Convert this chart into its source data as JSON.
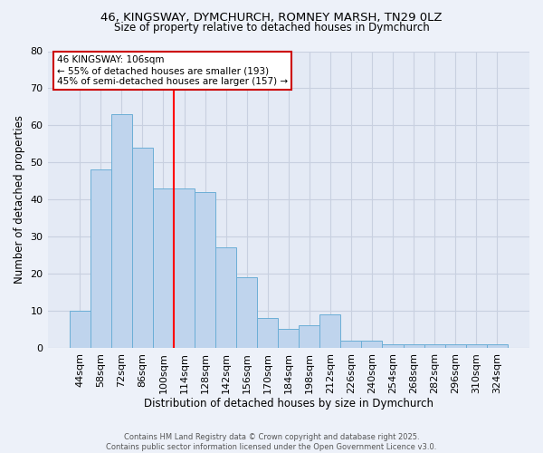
{
  "title_line1": "46, KINGSWAY, DYMCHURCH, ROMNEY MARSH, TN29 0LZ",
  "title_line2": "Size of property relative to detached houses in Dymchurch",
  "xlabel": "Distribution of detached houses by size in Dymchurch",
  "ylabel": "Number of detached properties",
  "categories": [
    "44sqm",
    "58sqm",
    "72sqm",
    "86sqm",
    "100sqm",
    "114sqm",
    "128sqm",
    "142sqm",
    "156sqm",
    "170sqm",
    "184sqm",
    "198sqm",
    "212sqm",
    "226sqm",
    "240sqm",
    "254sqm",
    "268sqm",
    "282sqm",
    "296sqm",
    "310sqm",
    "324sqm"
  ],
  "values": [
    10,
    48,
    63,
    54,
    43,
    43,
    42,
    27,
    19,
    8,
    5,
    6,
    9,
    2,
    2,
    1,
    1,
    1,
    1,
    1,
    1
  ],
  "bar_color": "#bfd4ed",
  "bar_edge_color": "#6baed6",
  "reference_line_x": 4.5,
  "annotation_title": "46 KINGSWAY: 106sqm",
  "annotation_line2": "← 55% of detached houses are smaller (193)",
  "annotation_line3": "45% of semi-detached houses are larger (157) →",
  "annotation_box_color": "#ffffff",
  "annotation_box_edge": "#cc0000",
  "ylim": [
    0,
    80
  ],
  "yticks": [
    0,
    10,
    20,
    30,
    40,
    50,
    60,
    70,
    80
  ],
  "footer_line1": "Contains HM Land Registry data © Crown copyright and database right 2025.",
  "footer_line2": "Contains public sector information licensed under the Open Government Licence v3.0.",
  "bg_color": "#edf1f9",
  "plot_bg_color": "#e4eaf5",
  "grid_color": "#c8d0e0"
}
